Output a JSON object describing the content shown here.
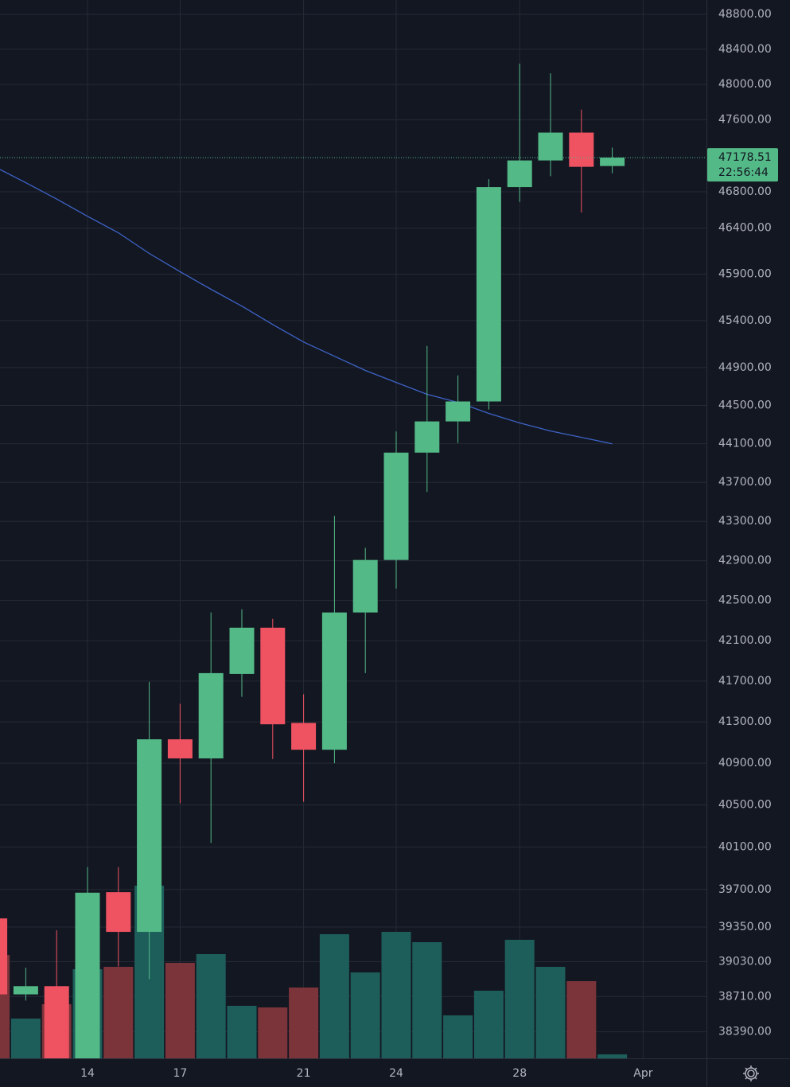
{
  "chart_data": {
    "type": "candlestick",
    "categories": [
      null,
      null,
      null,
      "14",
      null,
      null,
      "17",
      null,
      null,
      null,
      "21",
      null,
      null,
      "24",
      null,
      null,
      null,
      "28",
      null,
      null,
      null,
      "Apr"
    ],
    "candles": {
      "open": [
        39430,
        38730,
        38805,
        38100,
        39675,
        39305,
        41131,
        40946,
        41770,
        42228,
        41290,
        41030,
        42380,
        42908,
        44008,
        44333,
        44542,
        46852,
        47147,
        47458,
        47085,
        null
      ],
      "high": [
        39480,
        38974,
        39320,
        39910,
        39910,
        41692,
        41477,
        42380,
        42412,
        42316,
        41570,
        43357,
        43030,
        44228,
        45129,
        44817,
        46940,
        48236,
        48126,
        47715,
        47290,
        null
      ],
      "low": [
        38650,
        38674,
        37950,
        37950,
        38985,
        38870,
        40515,
        40138,
        41546,
        40940,
        40530,
        40900,
        41778,
        42620,
        43602,
        44108,
        44458,
        46688,
        46973,
        46572,
        47005,
        null
      ],
      "close": [
        38730,
        38805,
        38100,
        39670,
        39305,
        41131,
        40946,
        41778,
        42228,
        41277,
        41030,
        42380,
        42908,
        44008,
        44333,
        44542,
        46852,
        47147,
        47458,
        47076,
        47178.51,
        null
      ],
      "up_color": "#53b987",
      "down_color": "#ef5362"
    },
    "volume": {
      "values": [
        130,
        50,
        68,
        112,
        115,
        217,
        120,
        131,
        66,
        64,
        89,
        156,
        108,
        159,
        146,
        54,
        85,
        149,
        115,
        97,
        5,
        null
      ],
      "lim": [
        0,
        250
      ],
      "up_color": "#1d5e5b",
      "down_color": "#7b3439"
    },
    "moving_average": {
      "values": [
        47076,
        46900,
        46720,
        46530,
        46350,
        46124,
        45926,
        45736,
        45555,
        45358,
        45171,
        45019,
        44869,
        44742,
        44617,
        44533,
        44417,
        44317,
        44233,
        44167,
        44100,
        null
      ],
      "color": "#3d63c6"
    },
    "ylim": [
      38150,
      48965
    ],
    "log_scale": true,
    "yticks": [
      {
        "value": 48800,
        "label": "48800.00"
      },
      {
        "value": 48400,
        "label": "48400.00"
      },
      {
        "value": 48000,
        "label": "48000.00"
      },
      {
        "value": 47600,
        "label": "47600.00"
      },
      {
        "value": 46800,
        "label": "46800.00"
      },
      {
        "value": 46400,
        "label": "46400.00"
      },
      {
        "value": 45900,
        "label": "45900.00"
      },
      {
        "value": 45400,
        "label": "45400.00"
      },
      {
        "value": 44900,
        "label": "44900.00"
      },
      {
        "value": 44500,
        "label": "44500.00"
      },
      {
        "value": 44100,
        "label": "44100.00"
      },
      {
        "value": 43700,
        "label": "43700.00"
      },
      {
        "value": 43300,
        "label": "43300.00"
      },
      {
        "value": 42900,
        "label": "42900.00"
      },
      {
        "value": 42500,
        "label": "42500.00"
      },
      {
        "value": 42100,
        "label": "42100.00"
      },
      {
        "value": 41700,
        "label": "41700.00"
      },
      {
        "value": 41300,
        "label": "41300.00"
      },
      {
        "value": 40900,
        "label": "40900.00"
      },
      {
        "value": 40500,
        "label": "40500.00"
      },
      {
        "value": 40100,
        "label": "40100.00"
      },
      {
        "value": 39700,
        "label": "39700.00"
      },
      {
        "value": 39350,
        "label": "39350.00"
      },
      {
        "value": 39030,
        "label": "39030.00"
      },
      {
        "value": 38710,
        "label": "38710.00"
      },
      {
        "value": 38390,
        "label": "38390.00"
      }
    ],
    "grid": true,
    "last_price": 47178.51,
    "countdown": "22:56:44"
  }
}
